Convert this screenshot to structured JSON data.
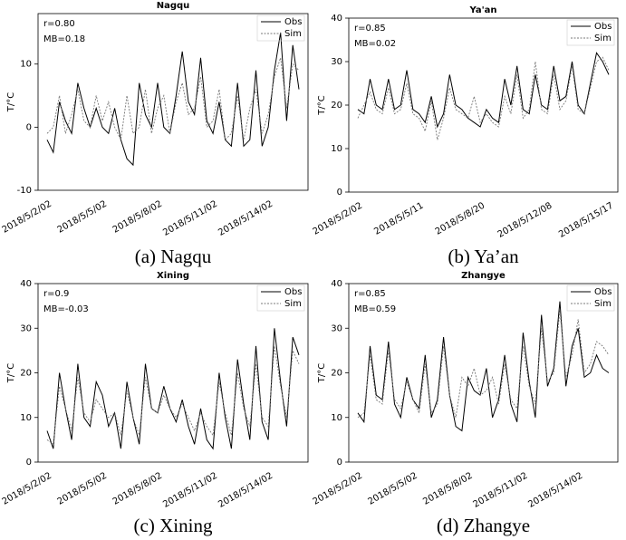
{
  "chart_data": [
    {
      "type": "line",
      "title": "Nagqu",
      "caption": "(a) Nagqu",
      "ylabel": "T/°C",
      "annotations": [
        "r=0.80",
        "MB=0.18"
      ],
      "categories": [
        "2018/5/2/02",
        null,
        null,
        null,
        null,
        null,
        null,
        null,
        null,
        "2018/5/5/02",
        null,
        null,
        null,
        null,
        null,
        null,
        null,
        null,
        "2018/5/8/02",
        null,
        null,
        null,
        null,
        null,
        null,
        null,
        null,
        "2018/5/11/02",
        null,
        null,
        null,
        null,
        null,
        null,
        null,
        null,
        "2018/5/14/02",
        null,
        null,
        null,
        null,
        null
      ],
      "ylim": [
        -10,
        18
      ],
      "yticks": [
        -10,
        0,
        10
      ],
      "series": [
        {
          "name": "Obs",
          "color": "#000000",
          "values": [
            -2,
            -4,
            4,
            1,
            -1,
            7,
            3,
            0,
            3,
            0,
            -1,
            3,
            -2,
            -5,
            -6,
            7,
            2,
            0,
            7,
            0,
            -1,
            5,
            12,
            4,
            2,
            11,
            1,
            -1,
            4,
            -2,
            -3,
            7,
            -3,
            -2,
            9,
            -3,
            0,
            9,
            15,
            1,
            13,
            6
          ]
        },
        {
          "name": "Sim",
          "color": "#777777",
          "values": [
            -1,
            0,
            5,
            -1,
            2,
            6,
            1,
            0,
            5,
            1,
            4,
            0,
            -2,
            5,
            -1,
            0,
            6,
            -1,
            3,
            5,
            -1,
            4,
            7,
            2,
            3,
            8,
            0,
            1,
            6,
            -2,
            -1,
            5,
            -2,
            3,
            6,
            -1,
            2,
            8,
            11,
            3,
            10,
            9
          ]
        }
      ]
    },
    {
      "type": "line",
      "title": "Ya'an",
      "caption": "(b) Ya’an",
      "ylabel": "T/°C",
      "annotations": [
        "r=0.85",
        "MB=0.02"
      ],
      "categories": [
        "2018/5/2/02",
        null,
        null,
        null,
        null,
        null,
        null,
        null,
        null,
        null,
        "2018/5/5/11",
        null,
        null,
        null,
        null,
        null,
        null,
        null,
        null,
        null,
        "2018/5/8/20",
        null,
        null,
        null,
        null,
        null,
        null,
        null,
        null,
        null,
        null,
        "2018/5/12/08",
        null,
        null,
        null,
        null,
        null,
        null,
        null,
        null,
        null,
        "2018/5/15/17"
      ],
      "ylim": [
        0,
        40
      ],
      "yticks": [
        0,
        10,
        20,
        30,
        40
      ],
      "series": [
        {
          "name": "Obs",
          "color": "#000000",
          "values": [
            19,
            18,
            26,
            20,
            19,
            26,
            19,
            20,
            28,
            19,
            18,
            16,
            22,
            15,
            18,
            27,
            20,
            19,
            17,
            16,
            15,
            19,
            17,
            16,
            26,
            20,
            29,
            19,
            18,
            27,
            20,
            19,
            29,
            21,
            22,
            30,
            20,
            18,
            25,
            32,
            30,
            27
          ]
        },
        {
          "name": "Sim",
          "color": "#777777",
          "values": [
            17,
            20,
            23,
            19,
            18,
            24,
            18,
            19,
            25,
            18,
            17,
            14,
            21,
            12,
            17,
            24,
            19,
            18,
            17,
            22,
            16,
            18,
            16,
            15,
            22,
            18,
            27,
            17,
            19,
            30,
            19,
            18,
            27,
            19,
            21,
            29,
            19,
            18,
            24,
            30,
            31,
            28
          ]
        }
      ]
    },
    {
      "type": "line",
      "title": "Xining",
      "caption": "(c) Xining",
      "ylabel": "T/°C",
      "annotations": [
        "r=0.9",
        "MB=-0.03"
      ],
      "categories": [
        "2018/5/2/02",
        null,
        null,
        null,
        null,
        null,
        null,
        null,
        null,
        "2018/5/5/02",
        null,
        null,
        null,
        null,
        null,
        null,
        null,
        null,
        "2018/5/8/02",
        null,
        null,
        null,
        null,
        null,
        null,
        null,
        null,
        "2018/5/11/02",
        null,
        null,
        null,
        null,
        null,
        null,
        null,
        null,
        "2018/5/14/02",
        null,
        null,
        null,
        null,
        null
      ],
      "ylim": [
        0,
        40
      ],
      "yticks": [
        0,
        10,
        20,
        30,
        40
      ],
      "series": [
        {
          "name": "Obs",
          "color": "#000000",
          "values": [
            7,
            3,
            20,
            12,
            5,
            22,
            10,
            8,
            18,
            15,
            8,
            11,
            3,
            18,
            10,
            4,
            22,
            12,
            11,
            17,
            12,
            9,
            14,
            8,
            4,
            12,
            5,
            3,
            20,
            10,
            3,
            23,
            13,
            5,
            26,
            9,
            5,
            30,
            18,
            8,
            28,
            24
          ]
        },
        {
          "name": "Sim",
          "color": "#777777",
          "values": [
            5,
            4,
            17,
            12,
            7,
            19,
            11,
            9,
            14,
            12,
            10,
            11,
            6,
            16,
            10,
            6,
            19,
            12,
            11,
            15,
            12,
            10,
            13,
            10,
            7,
            11,
            8,
            6,
            18,
            11,
            6,
            20,
            12,
            8,
            22,
            10,
            8,
            26,
            17,
            10,
            25,
            22
          ]
        }
      ]
    },
    {
      "type": "line",
      "title": "Zhangye",
      "caption": "(d) Zhangye",
      "ylabel": "T/°C",
      "annotations": [
        "r=0.85",
        "MB=0.59"
      ],
      "categories": [
        "2018/5/2/02",
        null,
        null,
        null,
        null,
        null,
        null,
        null,
        null,
        "2018/5/5/02",
        null,
        null,
        null,
        null,
        null,
        null,
        null,
        null,
        "2018/5/8/02",
        null,
        null,
        null,
        null,
        null,
        null,
        null,
        null,
        "2018/5/11/02",
        null,
        null,
        null,
        null,
        null,
        null,
        null,
        null,
        "2018/5/14/02",
        null,
        null,
        null,
        null,
        null
      ],
      "ylim": [
        0,
        40
      ],
      "yticks": [
        0,
        10,
        20,
        30,
        40
      ],
      "series": [
        {
          "name": "Obs",
          "color": "#000000",
          "values": [
            11,
            9,
            26,
            15,
            14,
            27,
            13,
            10,
            19,
            14,
            12,
            24,
            10,
            14,
            28,
            15,
            8,
            7,
            19,
            16,
            15,
            21,
            10,
            14,
            24,
            13,
            9,
            29,
            18,
            10,
            33,
            17,
            21,
            36,
            17,
            26,
            30,
            19,
            20,
            24,
            21,
            20
          ]
        },
        {
          "name": "Sim",
          "color": "#777777",
          "values": [
            10,
            11,
            24,
            14,
            13,
            25,
            14,
            12,
            18,
            14,
            11,
            22,
            11,
            13,
            26,
            15,
            10,
            19,
            17,
            21,
            15,
            16,
            19,
            13,
            22,
            14,
            12,
            26,
            17,
            13,
            30,
            18,
            20,
            34,
            19,
            24,
            32,
            20,
            22,
            27,
            26,
            24
          ]
        }
      ]
    }
  ]
}
